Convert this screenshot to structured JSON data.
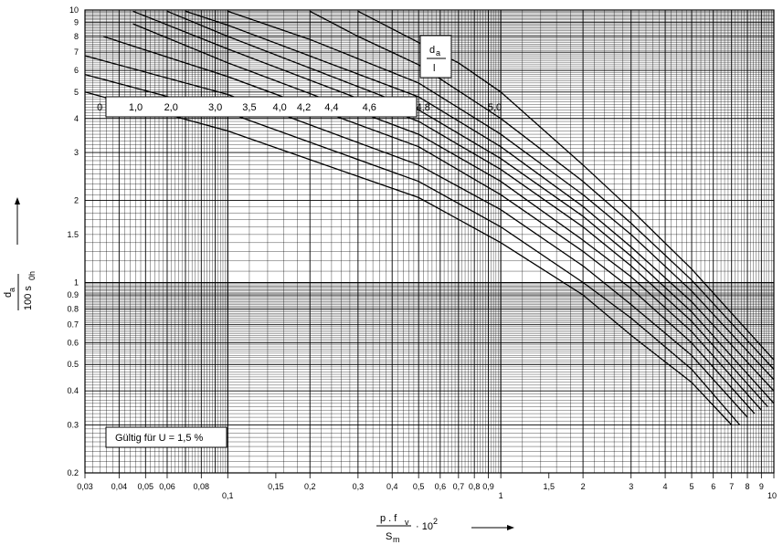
{
  "chart_data": {
    "type": "line",
    "title": "",
    "x_scale": "log",
    "y_scale": "log",
    "xlim": [
      0.03,
      10
    ],
    "ylim": [
      0.2,
      10
    ],
    "grid": true,
    "xlabel": {
      "numerator": "p . f",
      "numerator_sub": "v",
      "denominator": "S",
      "denominator_sub": "m",
      "suffix": "· 10",
      "suffix_sup": "2"
    },
    "ylabel": {
      "numerator": "d",
      "numerator_sub": "a",
      "denominator": "100 s",
      "denominator_sub": "0h"
    },
    "x_ticks": [
      {
        "v": 0.03,
        "t": "0,03"
      },
      {
        "v": 0.04,
        "t": "0,04"
      },
      {
        "v": 0.05,
        "t": "0,05"
      },
      {
        "v": 0.06,
        "t": "0,06"
      },
      {
        "v": 0.08,
        "t": "0,08"
      },
      {
        "v": 0.1,
        "t": "0,1"
      },
      {
        "v": 0.15,
        "t": "0,15"
      },
      {
        "v": 0.2,
        "t": "0,2"
      },
      {
        "v": 0.3,
        "t": "0,3"
      },
      {
        "v": 0.4,
        "t": "0,4"
      },
      {
        "v": 0.5,
        "t": "0,5"
      },
      {
        "v": 0.6,
        "t": "0,6"
      },
      {
        "v": 0.7,
        "t": "0,7"
      },
      {
        "v": 0.8,
        "t": "0,8"
      },
      {
        "v": 0.9,
        "t": "0,9"
      },
      {
        "v": 1,
        "t": "1"
      },
      {
        "v": 1.5,
        "t": "1,5"
      },
      {
        "v": 2,
        "t": "2"
      },
      {
        "v": 3,
        "t": "3"
      },
      {
        "v": 4,
        "t": "4"
      },
      {
        "v": 5,
        "t": "5"
      },
      {
        "v": 6,
        "t": "6"
      },
      {
        "v": 7,
        "t": "7"
      },
      {
        "v": 8,
        "t": "8"
      },
      {
        "v": 9,
        "t": "9"
      },
      {
        "v": 10,
        "t": "10"
      }
    ],
    "y_ticks": [
      {
        "v": 0.2,
        "t": "0.2"
      },
      {
        "v": 0.3,
        "t": "0.3"
      },
      {
        "v": 0.4,
        "t": "0.4"
      },
      {
        "v": 0.5,
        "t": "0.5"
      },
      {
        "v": 0.6,
        "t": "0.6"
      },
      {
        "v": 0.7,
        "t": "0.7"
      },
      {
        "v": 0.8,
        "t": "0.8"
      },
      {
        "v": 0.9,
        "t": "0.9"
      },
      {
        "v": 1,
        "t": "1"
      },
      {
        "v": 1.5,
        "t": "1.5"
      },
      {
        "v": 2,
        "t": "2"
      },
      {
        "v": 3,
        "t": "3"
      },
      {
        "v": 4,
        "t": "4"
      },
      {
        "v": 5,
        "t": "5"
      },
      {
        "v": 6,
        "t": "6"
      },
      {
        "v": 7,
        "t": "7"
      },
      {
        "v": 8,
        "t": "8"
      },
      {
        "v": 9,
        "t": "9"
      },
      {
        "v": 10,
        "t": "10"
      }
    ],
    "legend": {
      "title_numerator": "d",
      "title_numerator_sub": "a",
      "title_denominator": "l"
    },
    "annotation": "Gültig für U = 1,5 %",
    "series": [
      {
        "name": "0",
        "label_at_x": 0.034,
        "x": [
          0.03,
          0.1,
          0.5,
          1,
          2,
          3,
          5,
          7
        ],
        "y": [
          5.0,
          3.6,
          2.05,
          1.4,
          0.9,
          0.64,
          0.43,
          0.3
        ]
      },
      {
        "name": "1,0",
        "label_at_x": 0.046,
        "x": [
          0.03,
          0.1,
          0.5,
          1,
          2,
          3,
          5,
          7.5
        ],
        "y": [
          5.8,
          4.2,
          2.35,
          1.6,
          1.0,
          0.74,
          0.48,
          0.3
        ]
      },
      {
        "name": "2,0",
        "label_at_x": 0.062,
        "x": [
          0.03,
          0.1,
          0.5,
          1,
          2,
          3,
          5,
          8
        ],
        "y": [
          6.8,
          4.9,
          2.7,
          1.85,
          1.15,
          0.83,
          0.54,
          0.32
        ]
      },
      {
        "name": "3,0",
        "label_at_x": 0.09,
        "x": [
          0.035,
          0.1,
          0.5,
          1,
          2,
          3,
          5,
          8.5
        ],
        "y": [
          8.0,
          5.7,
          3.15,
          2.1,
          1.3,
          0.95,
          0.6,
          0.33
        ]
      },
      {
        "name": "3,5",
        "label_at_x": 0.12,
        "x": [
          0.045,
          0.1,
          0.5,
          1,
          2,
          3,
          5,
          9
        ],
        "y": [
          8.9,
          6.4,
          3.5,
          2.35,
          1.43,
          1.05,
          0.66,
          0.34
        ]
      },
      {
        "name": "4,0",
        "label_at_x": 0.155,
        "x": [
          0.045,
          0.1,
          0.5,
          1,
          2,
          3,
          5,
          9.5
        ],
        "y": [
          9.9,
          7.2,
          3.9,
          2.6,
          1.6,
          1.15,
          0.72,
          0.35
        ]
      },
      {
        "name": "4,2",
        "label_at_x": 0.19,
        "x": [
          0.06,
          0.1,
          0.5,
          1,
          2,
          3,
          5,
          10
        ],
        "y": [
          9.9,
          8.0,
          4.3,
          2.85,
          1.75,
          1.25,
          0.78,
          0.36
        ]
      },
      {
        "name": "4,4",
        "label_at_x": 0.24,
        "x": [
          0.07,
          0.1,
          0.5,
          1,
          2,
          3,
          5,
          10
        ],
        "y": [
          9.9,
          8.8,
          4.8,
          3.15,
          1.9,
          1.35,
          0.85,
          0.4
        ]
      },
      {
        "name": "4,6",
        "label_at_x": 0.33,
        "x": [
          0.1,
          0.2,
          0.5,
          1,
          2,
          3,
          5,
          10
        ],
        "y": [
          9.9,
          7.8,
          5.4,
          3.5,
          2.1,
          1.5,
          0.93,
          0.44
        ]
      },
      {
        "name": "4,8",
        "label_at_x": 0.52,
        "x": [
          0.2,
          0.3,
          0.5,
          1,
          2,
          3,
          5,
          10
        ],
        "y": [
          9.9,
          8.0,
          6.3,
          4.0,
          2.35,
          1.65,
          1.02,
          0.48
        ]
      },
      {
        "name": "5,0",
        "label_at_x": 0.95,
        "x": [
          0.3,
          0.5,
          0.7,
          1,
          2,
          3,
          5,
          10
        ],
        "y": [
          9.9,
          7.6,
          6.4,
          5.0,
          2.7,
          1.85,
          1.12,
          0.52
        ]
      }
    ]
  }
}
